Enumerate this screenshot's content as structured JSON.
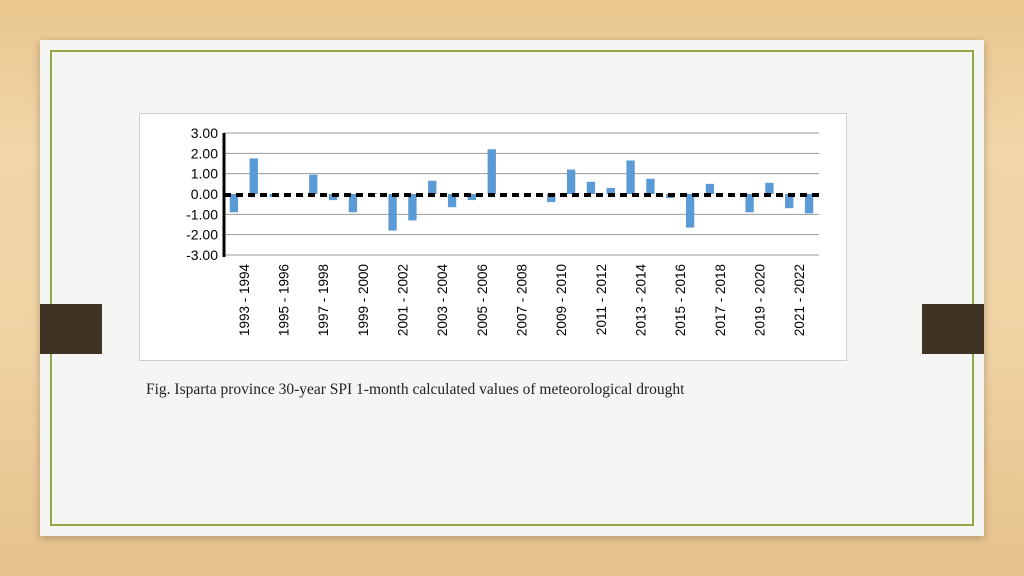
{
  "caption": "Fig. Isparta province 30-year SPI 1-month calculated values of meteorological drought",
  "colors": {
    "bar": "#5b9bd5",
    "frame": "#8fa946",
    "tab": "#3e3325"
  },
  "chart_data": {
    "type": "bar",
    "title": "",
    "xlabel": "",
    "ylabel": "",
    "ylim": [
      -3.0,
      3.0
    ],
    "yticks": [
      "3.00",
      "2.00",
      "1.00",
      "0.00",
      "-1.00",
      "-2.00",
      "-3.00"
    ],
    "grid": true,
    "xtick_labels": [
      "1993 - 1994",
      "1995 - 1996",
      "1997 - 1998",
      "1999 - 2000",
      "2001 - 2002",
      "2003 - 2004",
      "2005 - 2006",
      "2007 - 2008",
      "2009 - 2010",
      "2011 - 2012",
      "2013 - 2014",
      "2015 - 2016",
      "2017 - 2018",
      "2019 - 2020",
      "2021 - 2022"
    ],
    "categories": [
      "1993",
      "1994",
      "1995",
      "1996",
      "1997",
      "1998",
      "1999",
      "2000",
      "2001",
      "2002",
      "2003",
      "2004",
      "2005",
      "2006",
      "2007",
      "2008",
      "2009",
      "2010",
      "2011",
      "2012",
      "2013",
      "2014",
      "2015",
      "2016",
      "2017",
      "2018",
      "2019",
      "2020",
      "2021",
      "2022"
    ],
    "values": [
      -0.9,
      1.75,
      -0.15,
      0.0,
      0.95,
      -0.3,
      -0.9,
      0.05,
      -1.8,
      -1.3,
      0.65,
      -0.65,
      -0.3,
      2.2,
      0.0,
      0.0,
      -0.4,
      1.2,
      0.6,
      0.3,
      1.65,
      0.75,
      -0.2,
      -1.65,
      0.5,
      0.0,
      -0.9,
      0.55,
      -0.7,
      -0.95
    ]
  }
}
